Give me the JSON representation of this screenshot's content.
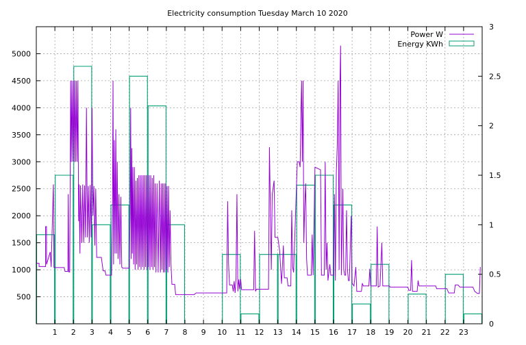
{
  "colors": {
    "power": "#9400d3",
    "energy": "#009e73",
    "grid": "#a0a0a0",
    "frame": "#000000"
  },
  "chart_data": {
    "type": "line",
    "title": "Electricity consumption Tuesday March 10 2020",
    "legend_position": "top-right",
    "grid": true,
    "xlim": [
      0,
      24
    ],
    "x_ticks": [
      1,
      2,
      3,
      4,
      5,
      6,
      7,
      8,
      9,
      10,
      11,
      12,
      13,
      14,
      15,
      16,
      17,
      18,
      19,
      20,
      21,
      22,
      23
    ],
    "y_left": {
      "lim": [
        0,
        5500
      ],
      "ticks": [
        500,
        1000,
        1500,
        2000,
        2500,
        3000,
        3500,
        4000,
        4500,
        5000
      ]
    },
    "y_right": {
      "lim": [
        0,
        3
      ],
      "ticks": [
        0,
        0.5,
        1,
        1.5,
        2,
        2.5,
        3
      ]
    },
    "series": [
      {
        "name": "Power W",
        "axis": "left",
        "style": "line",
        "points": [
          [
            0,
            1120
          ],
          [
            0.15,
            1120
          ],
          [
            0.15,
            1060
          ],
          [
            0.5,
            1060
          ],
          [
            0.5,
            1800
          ],
          [
            0.55,
            1800
          ],
          [
            0.55,
            1100
          ],
          [
            0.75,
            1330
          ],
          [
            0.8,
            1050
          ],
          [
            0.92,
            2580
          ],
          [
            0.95,
            1040
          ],
          [
            1.5,
            1040
          ],
          [
            1.55,
            970
          ],
          [
            1.7,
            970
          ],
          [
            1.72,
            2400
          ],
          [
            1.75,
            960
          ],
          [
            1.8,
            960
          ],
          [
            1.85,
            4500
          ],
          [
            1.88,
            3000
          ],
          [
            1.92,
            4500
          ],
          [
            1.96,
            3000
          ],
          [
            2.0,
            4500
          ],
          [
            2.04,
            3000
          ],
          [
            2.08,
            4500
          ],
          [
            2.12,
            3000
          ],
          [
            2.16,
            4500
          ],
          [
            2.2,
            3000
          ],
          [
            2.24,
            4500
          ],
          [
            2.28,
            1900
          ],
          [
            2.3,
            2580
          ],
          [
            2.35,
            1300
          ],
          [
            2.38,
            2560
          ],
          [
            2.45,
            1500
          ],
          [
            2.5,
            2580
          ],
          [
            2.55,
            1500
          ],
          [
            2.6,
            2560
          ],
          [
            2.65,
            1600
          ],
          [
            2.7,
            4000
          ],
          [
            2.75,
            1600
          ],
          [
            2.8,
            2550
          ],
          [
            2.85,
            1500
          ],
          [
            2.9,
            2570
          ],
          [
            2.95,
            1600
          ],
          [
            3.0,
            4000
          ],
          [
            3.05,
            2000
          ],
          [
            3.1,
            2550
          ],
          [
            3.15,
            1450
          ],
          [
            3.2,
            2500
          ],
          [
            3.25,
            1230
          ],
          [
            3.5,
            1230
          ],
          [
            3.6,
            980
          ],
          [
            3.7,
            980
          ],
          [
            3.75,
            900
          ],
          [
            4.05,
            900
          ],
          [
            4.1,
            2000
          ],
          [
            4.13,
            4500
          ],
          [
            4.16,
            1100
          ],
          [
            4.2,
            3400
          ],
          [
            4.24,
            1300
          ],
          [
            4.28,
            3600
          ],
          [
            4.32,
            1300
          ],
          [
            4.36,
            3000
          ],
          [
            4.4,
            1200
          ],
          [
            4.45,
            2400
          ],
          [
            4.5,
            1100
          ],
          [
            4.55,
            2350
          ],
          [
            4.6,
            1050
          ],
          [
            4.65,
            1030
          ],
          [
            5.0,
            1030
          ],
          [
            5.05,
            2000
          ],
          [
            5.08,
            4000
          ],
          [
            5.11,
            1200
          ],
          [
            5.14,
            3250
          ],
          [
            5.17,
            1300
          ],
          [
            5.2,
            2900
          ],
          [
            5.24,
            1100
          ],
          [
            5.28,
            2900
          ],
          [
            5.32,
            1000
          ],
          [
            5.36,
            2650
          ],
          [
            5.4,
            1100
          ],
          [
            5.44,
            2700
          ],
          [
            5.48,
            1000
          ],
          [
            5.52,
            2750
          ],
          [
            5.56,
            1050
          ],
          [
            5.6,
            2750
          ],
          [
            5.64,
            1000
          ],
          [
            5.68,
            2750
          ],
          [
            5.72,
            1050
          ],
          [
            5.76,
            2750
          ],
          [
            5.8,
            1000
          ],
          [
            5.84,
            2750
          ],
          [
            5.88,
            1050
          ],
          [
            5.92,
            2750
          ],
          [
            5.96,
            1000
          ],
          [
            6.0,
            2750
          ],
          [
            6.04,
            1050
          ],
          [
            6.08,
            2750
          ],
          [
            6.12,
            1000
          ],
          [
            6.16,
            2750
          ],
          [
            6.2,
            1050
          ],
          [
            6.24,
            2700
          ],
          [
            6.28,
            1000
          ],
          [
            6.32,
            2750
          ],
          [
            6.36,
            1050
          ],
          [
            6.4,
            2600
          ],
          [
            6.44,
            950
          ],
          [
            6.5,
            2600
          ],
          [
            6.56,
            950
          ],
          [
            6.62,
            2650
          ],
          [
            6.68,
            950
          ],
          [
            6.72,
            2600
          ],
          [
            6.76,
            1000
          ],
          [
            6.8,
            2600
          ],
          [
            6.84,
            950
          ],
          [
            6.88,
            2600
          ],
          [
            6.92,
            950
          ],
          [
            6.96,
            2600
          ],
          [
            7.0,
            1000
          ],
          [
            7.04,
            2550
          ],
          [
            7.08,
            950
          ],
          [
            7.12,
            2550
          ],
          [
            7.16,
            1050
          ],
          [
            7.2,
            2100
          ],
          [
            7.25,
            1100
          ],
          [
            7.3,
            730
          ],
          [
            7.45,
            730
          ],
          [
            7.5,
            540
          ],
          [
            8.5,
            540
          ],
          [
            8.6,
            570
          ],
          [
            10.0,
            570
          ],
          [
            10.25,
            570
          ],
          [
            10.3,
            2270
          ],
          [
            10.35,
            1100
          ],
          [
            10.4,
            720
          ],
          [
            10.55,
            720
          ],
          [
            10.6,
            600
          ],
          [
            10.65,
            790
          ],
          [
            10.7,
            570
          ],
          [
            10.75,
            840
          ],
          [
            10.8,
            2400
          ],
          [
            10.85,
            600
          ],
          [
            10.9,
            820
          ],
          [
            10.95,
            640
          ],
          [
            11.0,
            830
          ],
          [
            11.05,
            630
          ],
          [
            11.7,
            630
          ],
          [
            11.75,
            1720
          ],
          [
            11.8,
            600
          ],
          [
            11.85,
            640
          ],
          [
            12.5,
            640
          ],
          [
            12.55,
            3270
          ],
          [
            12.6,
            2100
          ],
          [
            12.65,
            1000
          ],
          [
            12.7,
            2400
          ],
          [
            12.8,
            2650
          ],
          [
            12.85,
            1600
          ],
          [
            13.0,
            1600
          ],
          [
            13.1,
            1350
          ],
          [
            13.2,
            740
          ],
          [
            13.3,
            1450
          ],
          [
            13.35,
            850
          ],
          [
            13.5,
            850
          ],
          [
            13.55,
            700
          ],
          [
            13.7,
            700
          ],
          [
            13.75,
            2100
          ],
          [
            13.8,
            1050
          ],
          [
            13.85,
            950
          ],
          [
            14.0,
            2500
          ],
          [
            14.05,
            3000
          ],
          [
            14.15,
            3000
          ],
          [
            14.2,
            2900
          ],
          [
            14.25,
            4000
          ],
          [
            14.28,
            4500
          ],
          [
            14.32,
            3000
          ],
          [
            14.36,
            4500
          ],
          [
            14.4,
            1500
          ],
          [
            14.45,
            2200
          ],
          [
            14.5,
            2600
          ],
          [
            14.55,
            1200
          ],
          [
            14.6,
            900
          ],
          [
            14.8,
            900
          ],
          [
            14.85,
            1650
          ],
          [
            14.9,
            900
          ],
          [
            15.0,
            2900
          ],
          [
            15.3,
            2850
          ],
          [
            15.35,
            900
          ],
          [
            15.5,
            900
          ],
          [
            15.55,
            3000
          ],
          [
            15.6,
            1000
          ],
          [
            15.65,
            1500
          ],
          [
            15.7,
            800
          ],
          [
            15.8,
            1100
          ],
          [
            15.85,
            900
          ],
          [
            16.0,
            900
          ],
          [
            16.05,
            2400
          ],
          [
            16.1,
            800
          ],
          [
            16.15,
            2800
          ],
          [
            16.2,
            3300
          ],
          [
            16.25,
            4500
          ],
          [
            16.3,
            1000
          ],
          [
            16.35,
            4500
          ],
          [
            16.38,
            5150
          ],
          [
            16.42,
            900
          ],
          [
            16.5,
            2500
          ],
          [
            16.55,
            1000
          ],
          [
            16.6,
            900
          ],
          [
            16.65,
            900
          ],
          [
            16.7,
            2100
          ],
          [
            16.75,
            1000
          ],
          [
            16.8,
            800
          ],
          [
            16.85,
            800
          ],
          [
            16.95,
            2000
          ],
          [
            17.0,
            750
          ],
          [
            17.1,
            700
          ],
          [
            17.2,
            1050
          ],
          [
            17.25,
            600
          ],
          [
            17.5,
            600
          ],
          [
            17.55,
            750
          ],
          [
            17.6,
            700
          ],
          [
            17.9,
            700
          ],
          [
            17.95,
            1020
          ],
          [
            18.0,
            700
          ],
          [
            18.3,
            700
          ],
          [
            18.35,
            1800
          ],
          [
            18.4,
            680
          ],
          [
            18.5,
            700
          ],
          [
            18.6,
            1500
          ],
          [
            18.65,
            700
          ],
          [
            19.0,
            700
          ],
          [
            19.05,
            680
          ],
          [
            20.0,
            680
          ],
          [
            20.05,
            620
          ],
          [
            20.15,
            620
          ],
          [
            20.2,
            1180
          ],
          [
            20.25,
            600
          ],
          [
            20.5,
            600
          ],
          [
            20.55,
            800
          ],
          [
            20.6,
            700
          ],
          [
            21.0,
            700
          ],
          [
            21.5,
            700
          ],
          [
            21.55,
            650
          ],
          [
            22.0,
            650
          ],
          [
            22.1,
            650
          ],
          [
            22.2,
            570
          ],
          [
            22.5,
            570
          ],
          [
            22.55,
            720
          ],
          [
            22.7,
            720
          ],
          [
            22.8,
            680
          ],
          [
            23.0,
            680
          ],
          [
            23.5,
            680
          ],
          [
            23.6,
            600
          ],
          [
            23.75,
            560
          ],
          [
            23.85,
            560
          ],
          [
            23.9,
            1050
          ]
        ]
      },
      {
        "name": "Energy KWh",
        "axis": "right",
        "style": "steps",
        "values": [
          0.9,
          1.5,
          2.6,
          1.0,
          1.2,
          2.5,
          2.2,
          1.0,
          0,
          0,
          0.7,
          0.1,
          0.7,
          0.7,
          1.4,
          1.5,
          1.2,
          0.2,
          0.6,
          0,
          0.3,
          0,
          0.5,
          0.1
        ]
      }
    ]
  }
}
